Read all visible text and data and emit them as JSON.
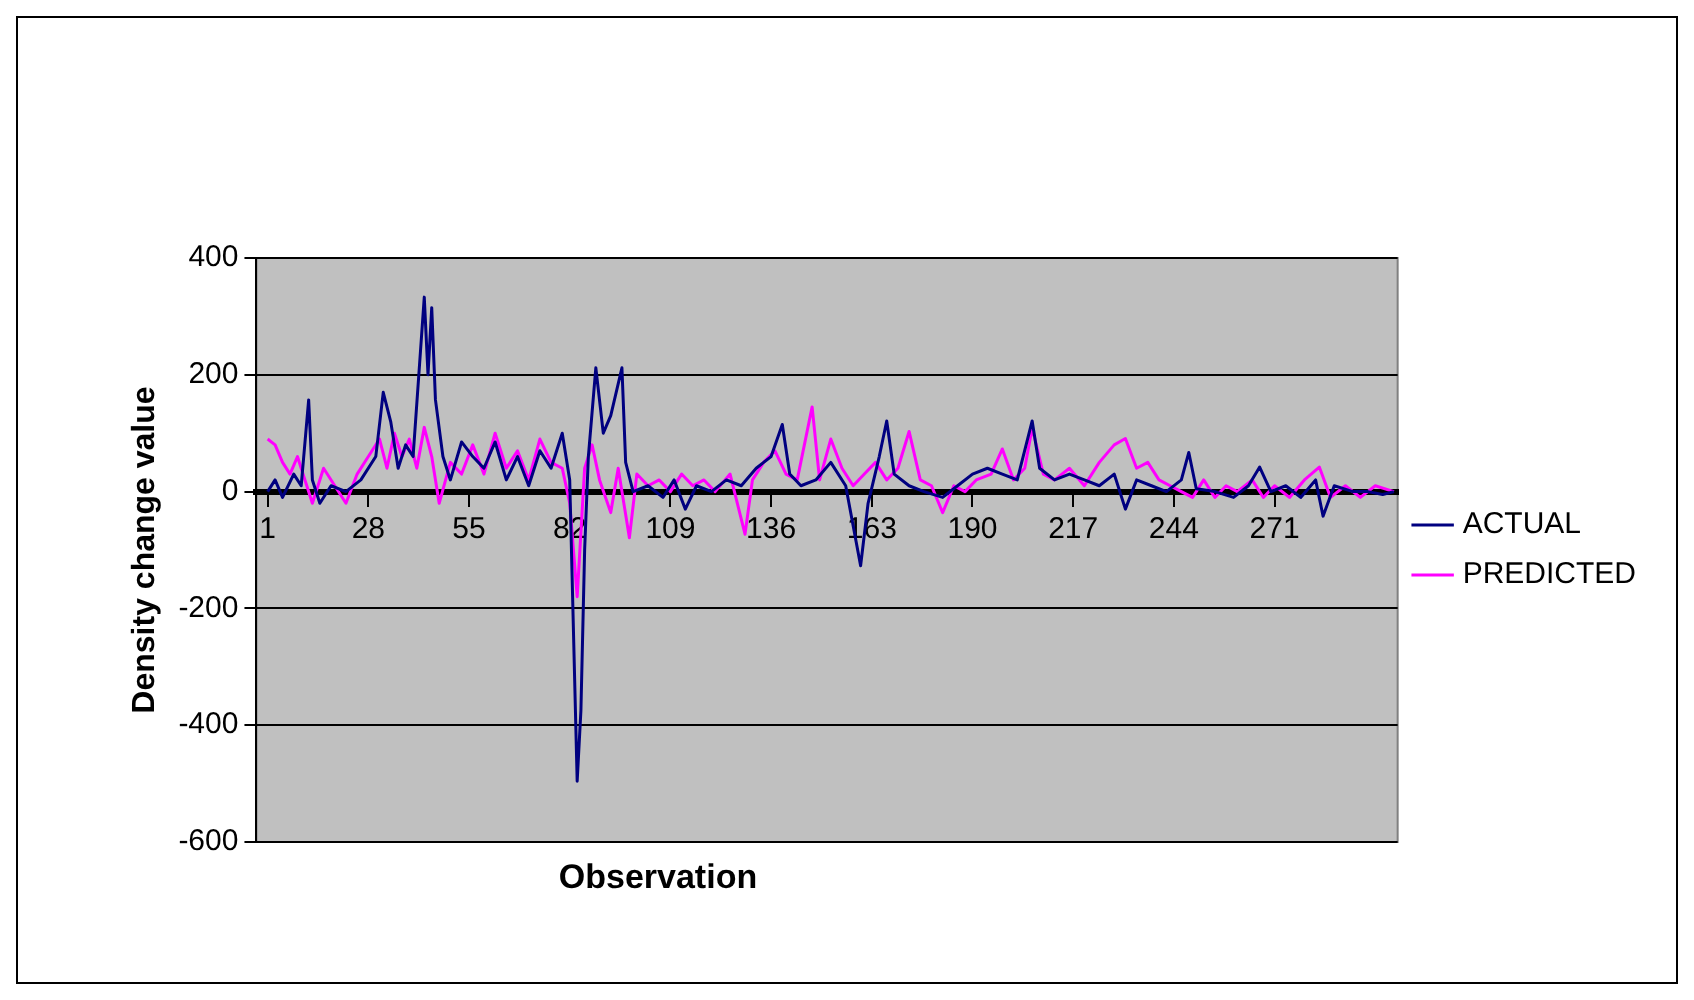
{
  "chart_data": {
    "type": "line",
    "xlabel": "Observation",
    "ylabel": "Density change value",
    "xlim": [
      -2,
      304
    ],
    "xticks": [
      1,
      28,
      55,
      82,
      109,
      136,
      163,
      190,
      217,
      244,
      271
    ],
    "ylim": [
      -600,
      400
    ],
    "yticks": [
      -600,
      -400,
      -200,
      0,
      200,
      400
    ],
    "grid": "y",
    "legend": "right",
    "marker": "none",
    "line_style": "solid",
    "series": [
      {
        "name": "ACTUAL",
        "color": "#000080",
        "x": [
          1,
          3,
          5,
          8,
          10,
          12,
          13,
          15,
          18,
          22,
          26,
          30,
          32,
          34,
          36,
          38,
          40,
          43,
          44,
          45,
          46,
          48,
          50,
          53,
          56,
          59,
          62,
          65,
          68,
          71,
          74,
          77,
          80,
          82,
          84,
          85,
          86,
          87,
          89,
          91,
          93,
          96,
          97,
          99,
          103,
          107,
          110,
          113,
          116,
          120,
          124,
          128,
          132,
          136,
          139,
          141,
          144,
          148,
          152,
          156,
          160,
          162,
          165,
          167,
          169,
          173,
          177,
          182,
          186,
          190,
          194,
          198,
          202,
          206,
          208,
          212,
          216,
          220,
          224,
          228,
          231,
          234,
          238,
          242,
          246,
          248,
          250,
          255,
          260,
          264,
          267,
          270,
          274,
          278,
          282,
          284,
          287,
          292,
          296,
          300,
          303
        ],
        "values": [
          0,
          20,
          -10,
          30,
          10,
          157,
          20,
          -20,
          10,
          0,
          20,
          60,
          170,
          120,
          40,
          80,
          60,
          333,
          200,
          315,
          157,
          60,
          20,
          85,
          60,
          40,
          85,
          20,
          60,
          10,
          70,
          40,
          100,
          20,
          -496,
          -375,
          -100,
          60,
          212,
          100,
          130,
          212,
          50,
          0,
          10,
          -10,
          20,
          -30,
          10,
          0,
          20,
          10,
          40,
          60,
          115,
          30,
          10,
          20,
          50,
          10,
          -127,
          -20,
          60,
          121,
          30,
          10,
          0,
          -10,
          10,
          30,
          40,
          30,
          20,
          121,
          40,
          20,
          30,
          20,
          10,
          30,
          -30,
          20,
          10,
          0,
          20,
          67,
          5,
          0,
          -10,
          10,
          42,
          0,
          10,
          -10,
          20,
          -42,
          10,
          0,
          0,
          -5,
          0
        ]
      },
      {
        "name": "PREDICTED",
        "color": "#ff00ff",
        "x": [
          1,
          3,
          5,
          7,
          9,
          11,
          13,
          16,
          19,
          22,
          25,
          28,
          31,
          33,
          35,
          37,
          39,
          41,
          43,
          45,
          47,
          50,
          53,
          56,
          59,
          62,
          65,
          68,
          71,
          74,
          77,
          80,
          82,
          84,
          86,
          88,
          90,
          93,
          95,
          98,
          100,
          103,
          106,
          109,
          112,
          115,
          118,
          121,
          125,
          129,
          131,
          134,
          137,
          140,
          143,
          147,
          149,
          152,
          155,
          158,
          161,
          164,
          167,
          170,
          173,
          176,
          179,
          182,
          185,
          188,
          191,
          195,
          198,
          201,
          204,
          206,
          209,
          212,
          216,
          220,
          224,
          228,
          231,
          234,
          237,
          240,
          243,
          246,
          249,
          252,
          255,
          258,
          261,
          265,
          268,
          271,
          275,
          279,
          283,
          286,
          290,
          294,
          298,
          303
        ],
        "values": [
          90,
          80,
          50,
          30,
          60,
          20,
          -20,
          40,
          10,
          -20,
          30,
          60,
          90,
          40,
          100,
          60,
          90,
          40,
          110,
          60,
          -20,
          50,
          30,
          80,
          30,
          100,
          40,
          70,
          20,
          90,
          50,
          40,
          -20,
          -180,
          40,
          80,
          20,
          -36,
          40,
          -79,
          30,
          10,
          20,
          0,
          30,
          10,
          20,
          0,
          30,
          -73,
          20,
          50,
          70,
          30,
          20,
          145,
          20,
          90,
          40,
          10,
          30,
          50,
          20,
          40,
          103,
          20,
          10,
          -36,
          10,
          0,
          20,
          30,
          73,
          20,
          40,
          109,
          30,
          20,
          40,
          10,
          50,
          80,
          91,
          40,
          50,
          20,
          10,
          0,
          -10,
          20,
          -10,
          10,
          0,
          20,
          -10,
          10,
          -10,
          20,
          42,
          -10,
          10,
          -10,
          10,
          0
        ]
      }
    ]
  }
}
